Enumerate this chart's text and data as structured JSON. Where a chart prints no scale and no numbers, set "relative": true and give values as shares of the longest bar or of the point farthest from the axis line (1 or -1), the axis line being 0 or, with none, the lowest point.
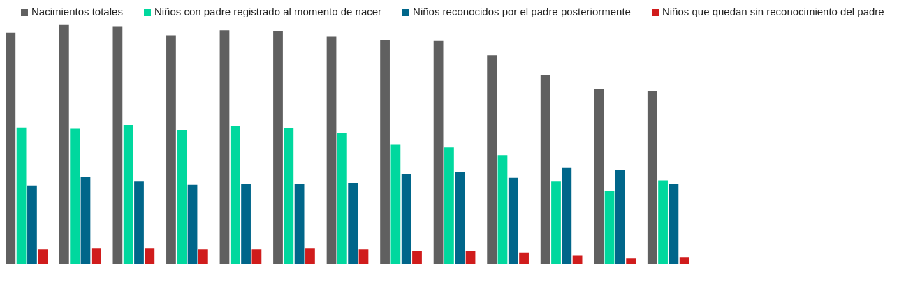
{
  "chart_data": {
    "type": "bar",
    "relative": true,
    "grid": "y",
    "legend": "top",
    "categories": [
      null,
      null,
      null,
      null,
      null,
      null,
      null,
      null,
      null,
      null,
      null,
      null,
      null
    ],
    "series": [
      {
        "name": "Nacimientos totales",
        "color": "#606060",
        "values": [
          0.968,
          1,
          0.995,
          0.957,
          0.978,
          0.976,
          0.951,
          0.938,
          0.933,
          0.873,
          0.792,
          0.733,
          0.722
        ]
      },
      {
        "name": "Niños con padre registrado al momento de nacer",
        "color": "#00d89e",
        "values": [
          0.571,
          0.566,
          0.582,
          0.561,
          0.577,
          0.569,
          0.547,
          0.499,
          0.488,
          0.456,
          0.345,
          0.305,
          0.35
        ]
      },
      {
        "name": "Niños reconocidos por el padre posteriormente",
        "color": "#00668a",
        "values": [
          0.329,
          0.364,
          0.345,
          0.332,
          0.334,
          0.337,
          0.34,
          0.375,
          0.385,
          0.361,
          0.402,
          0.394,
          0.337
        ]
      },
      {
        "name": "Niños que quedan sin reconocimiento del padre",
        "color": "#d01c1c",
        "values": [
          0.062,
          0.065,
          0.065,
          0.062,
          0.062,
          0.065,
          0.062,
          0.057,
          0.054,
          0.049,
          0.035,
          0.024,
          0.027
        ]
      }
    ]
  }
}
